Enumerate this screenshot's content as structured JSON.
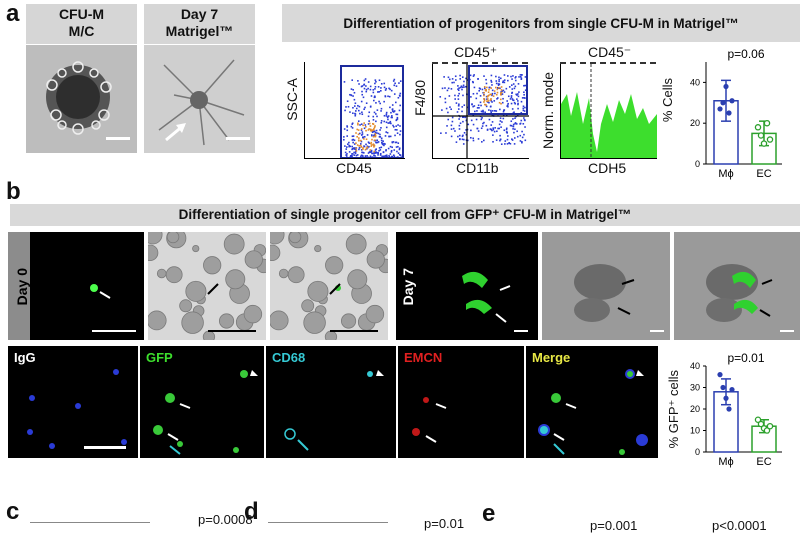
{
  "panel_a": {
    "letter": "a",
    "img1_title_line1": "CFU-M",
    "img1_title_line2": "M/C",
    "img2_title_line1": "Day 7",
    "img2_title_line2": "Matrigel™",
    "banner": "Differentiation of progenitors from single CFU-M in Matrigel™",
    "flow1": {
      "ylabel": "SSC-A",
      "xlabel": "CD45"
    },
    "flow2": {
      "top": "CD45⁺",
      "ylabel": "F4/80",
      "xlabel": "CD11b"
    },
    "hist": {
      "top": "CD45⁻",
      "ylabel": "Norm. mode",
      "xlabel": "CDH5"
    },
    "bar": {
      "ylabel": "% Cells",
      "p": "p=0.06",
      "ticks": [
        "0",
        "20",
        "40"
      ]
    }
  },
  "panel_b": {
    "letter": "b",
    "banner": "Differentiation of single progenitor cell from GFP⁺ CFU-M in Matrigel™",
    "day0": "Day 0",
    "day7": "Day 7",
    "channels": {
      "igg": "IgG",
      "gfp": "GFP",
      "cd68": "CD68",
      "emcn": "EMCN",
      "merge": "Merge"
    },
    "bar": {
      "ylabel": "% GFP⁺ cells",
      "p": "p=0.01",
      "ticks": [
        "0",
        "10",
        "20",
        "30",
        "40"
      ]
    }
  },
  "panel_c": {
    "letter": "c",
    "p": "p=0.0008"
  },
  "panel_d": {
    "letter": "d",
    "p": "p=0.01"
  },
  "panel_e": {
    "letter": "e",
    "p1": "p=0.001",
    "p2": "p<0.0001"
  },
  "chart_data": [
    {
      "type": "bar",
      "categories": [
        "Mϕ",
        "EC"
      ],
      "values": [
        31,
        15
      ],
      "errors": [
        10,
        6
      ],
      "points": [
        [
          27,
          30,
          38,
          25,
          31
        ],
        [
          18,
          14,
          10,
          20,
          12
        ]
      ],
      "ylabel": "% Cells",
      "ylim": [
        0,
        50
      ],
      "annotation": "p=0.06",
      "colors": [
        "#2b3fb0",
        "#2ca02c"
      ]
    },
    {
      "type": "bar",
      "categories": [
        "Mϕ",
        "EC"
      ],
      "values": [
        28,
        12
      ],
      "errors": [
        6,
        3
      ],
      "points": [
        [
          36,
          30,
          25,
          20,
          29
        ],
        [
          15,
          13,
          11,
          10,
          12
        ]
      ],
      "ylabel": "% GFP⁺ cells",
      "ylim": [
        0,
        40
      ],
      "annotation": "p=0.01",
      "colors": [
        "#2b3fb0",
        "#2ca02c"
      ]
    }
  ]
}
